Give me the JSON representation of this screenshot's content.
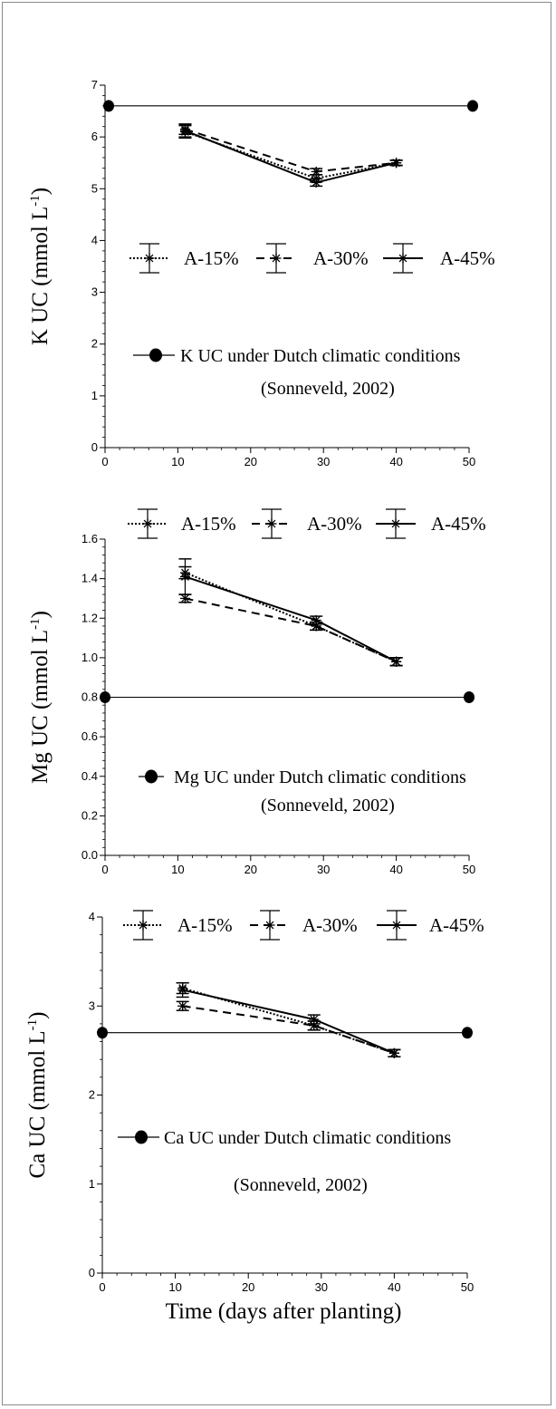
{
  "x_axis_label": "Time (days after planting)",
  "chart_data": [
    {
      "type": "line",
      "ylabel": "K UC (mmol L⁻¹)",
      "ylabel_main": "K UC (mmol L",
      "ylabel_sup": "-1",
      "ylabel_close": ")",
      "xlim": [
        0,
        50
      ],
      "ylim": [
        0,
        7
      ],
      "x_ticks": [
        0,
        10,
        20,
        30,
        40,
        50
      ],
      "y_ticks": [
        0,
        1,
        2,
        3,
        4,
        5,
        6,
        7
      ],
      "y_tick_labels": [
        "0",
        "1",
        "2",
        "3",
        "4",
        "5",
        "6",
        "7"
      ],
      "series": [
        {
          "name": "A-15%",
          "style": "dotted",
          "x": [
            11,
            29,
            40
          ],
          "y": [
            6.1,
            5.2,
            5.5
          ],
          "err": [
            0.12,
            0.07,
            0.05
          ]
        },
        {
          "name": "A-30%",
          "style": "dashed",
          "x": [
            11,
            29,
            40
          ],
          "y": [
            6.15,
            5.33,
            5.5
          ],
          "err": [
            0.1,
            0.06,
            0.05
          ]
        },
        {
          "name": "A-45%",
          "style": "solid",
          "x": [
            11,
            29,
            40
          ],
          "y": [
            6.12,
            5.12,
            5.5
          ],
          "err": [
            0.12,
            0.07,
            0.05
          ]
        }
      ],
      "reference": {
        "name": "K UC under Dutch climatic conditions",
        "source": "(Sonneveld, 2002)",
        "value": 6.6,
        "x": [
          0.5,
          50.5
        ]
      },
      "grid": false,
      "legend": "middle"
    },
    {
      "type": "line",
      "ylabel": "Mg UC (mmol L⁻¹)",
      "ylabel_main": "Mg UC (mmol L",
      "ylabel_sup": "-1",
      "ylabel_close": ")",
      "xlim": [
        0,
        50
      ],
      "ylim": [
        0,
        1.6
      ],
      "x_ticks": [
        0,
        10,
        20,
        30,
        40,
        50
      ],
      "y_ticks": [
        0,
        0.2,
        0.4,
        0.6,
        0.8,
        1.0,
        1.2,
        1.4,
        1.6
      ],
      "y_tick_labels": [
        "0.0",
        "0.2",
        "0.4",
        "0.6",
        "0.8",
        "1.0",
        "1.2",
        "1.4",
        "1.6"
      ],
      "series": [
        {
          "name": "A-15%",
          "style": "dotted",
          "x": [
            11,
            29,
            40
          ],
          "y": [
            1.43,
            1.16,
            0.98
          ],
          "err": [
            0.03,
            0.02,
            0.02
          ]
        },
        {
          "name": "A-30%",
          "style": "dashed",
          "x": [
            11,
            29,
            40
          ],
          "y": [
            1.3,
            1.16,
            0.98
          ],
          "err": [
            0.02,
            0.02,
            0.02
          ]
        },
        {
          "name": "A-45%",
          "style": "solid",
          "x": [
            11,
            29,
            40
          ],
          "y": [
            1.41,
            1.19,
            0.98
          ],
          "err": [
            0.09,
            0.02,
            0.02
          ]
        }
      ],
      "reference": {
        "name": "Mg UC under Dutch climatic conditions",
        "source": "(Sonneveld, 2002)",
        "value": 0.8,
        "x": [
          0,
          50
        ]
      },
      "grid": false,
      "legend": "top"
    },
    {
      "type": "line",
      "ylabel": "Ca UC (mmol L⁻¹)",
      "ylabel_main": "Ca UC (mmol L",
      "ylabel_sup": "-1",
      "ylabel_close": ")",
      "xlim": [
        0,
        50
      ],
      "ylim": [
        0,
        4
      ],
      "x_ticks": [
        0,
        10,
        20,
        30,
        40,
        50
      ],
      "y_ticks": [
        0,
        1,
        2,
        3,
        4
      ],
      "y_tick_labels": [
        "0",
        "1",
        "2",
        "3",
        "4"
      ],
      "series": [
        {
          "name": "A-15%",
          "style": "dotted",
          "x": [
            11,
            29,
            40
          ],
          "y": [
            3.2,
            2.78,
            2.47
          ],
          "err": [
            0.06,
            0.05,
            0.04
          ]
        },
        {
          "name": "A-30%",
          "style": "dashed",
          "x": [
            11,
            29,
            40
          ],
          "y": [
            3.0,
            2.78,
            2.47
          ],
          "err": [
            0.05,
            0.05,
            0.04
          ]
        },
        {
          "name": "A-45%",
          "style": "solid",
          "x": [
            11,
            29,
            40
          ],
          "y": [
            3.18,
            2.85,
            2.47
          ],
          "err": [
            0.08,
            0.05,
            0.04
          ]
        }
      ],
      "reference": {
        "name": "Ca UC under Dutch climatic conditions",
        "source": "(Sonneveld, 2002)",
        "value": 2.7,
        "x": [
          0,
          50
        ]
      },
      "grid": false,
      "legend": "top"
    }
  ]
}
